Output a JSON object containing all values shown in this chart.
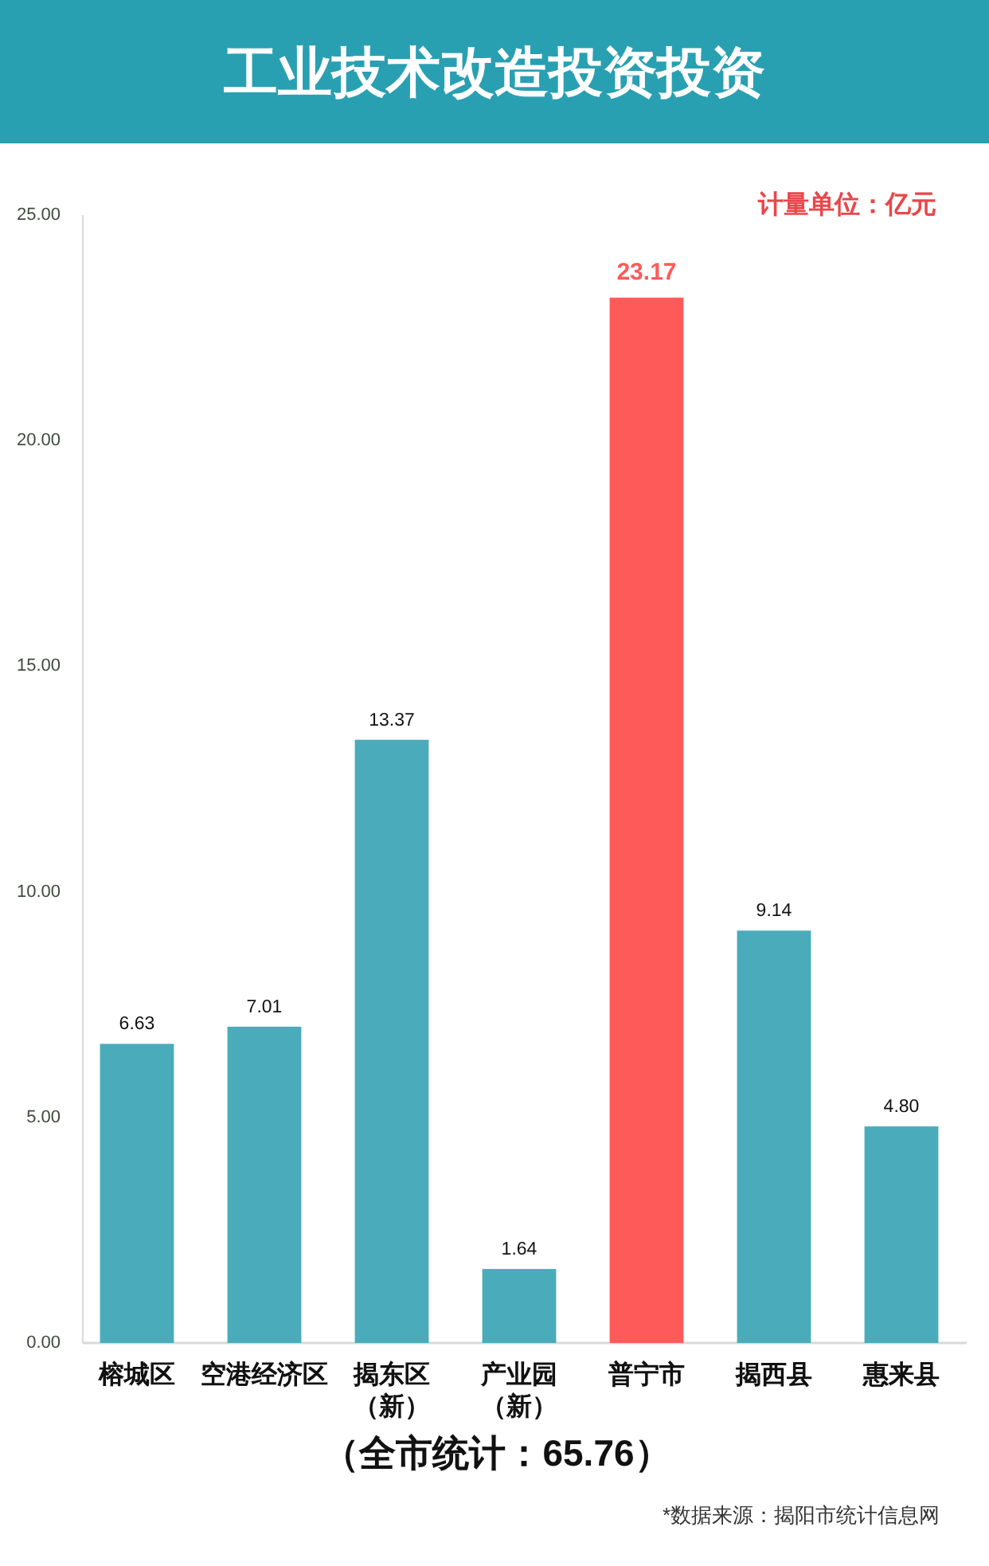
{
  "chart_data": {
    "type": "bar",
    "title": "工业技术改造投资投资",
    "categories": [
      "榕城区",
      "空港经济区",
      "揭东区（新）",
      "产业园（新）",
      "普宁市",
      "揭西县",
      "惠来县"
    ],
    "values": [
      6.63,
      7.01,
      13.37,
      1.64,
      23.17,
      9.14,
      4.8
    ],
    "value_labels": [
      "6.63",
      "7.01",
      "13.37",
      "1.64",
      "23.17",
      "9.14",
      "4.80"
    ],
    "colors": [
      "#4aabbb",
      "#4aabbb",
      "#4aabbb",
      "#4aabbb",
      "#ff5a5a",
      "#4aabbb",
      "#4aabbb"
    ],
    "ylim": [
      0,
      25
    ],
    "yticks": [
      {
        "value": 0,
        "label": "0.00"
      },
      {
        "value": 5,
        "label": "5.00"
      },
      {
        "value": 10,
        "label": "10.00"
      },
      {
        "value": 15,
        "label": "15.00"
      },
      {
        "value": 20,
        "label": "20.00"
      },
      {
        "value": 25,
        "label": "25.00"
      }
    ],
    "annotations": [
      "计量单位：亿元",
      "（全市统计：65.76）",
      "*数据来源：揭阳市统计信息网"
    ]
  }
}
